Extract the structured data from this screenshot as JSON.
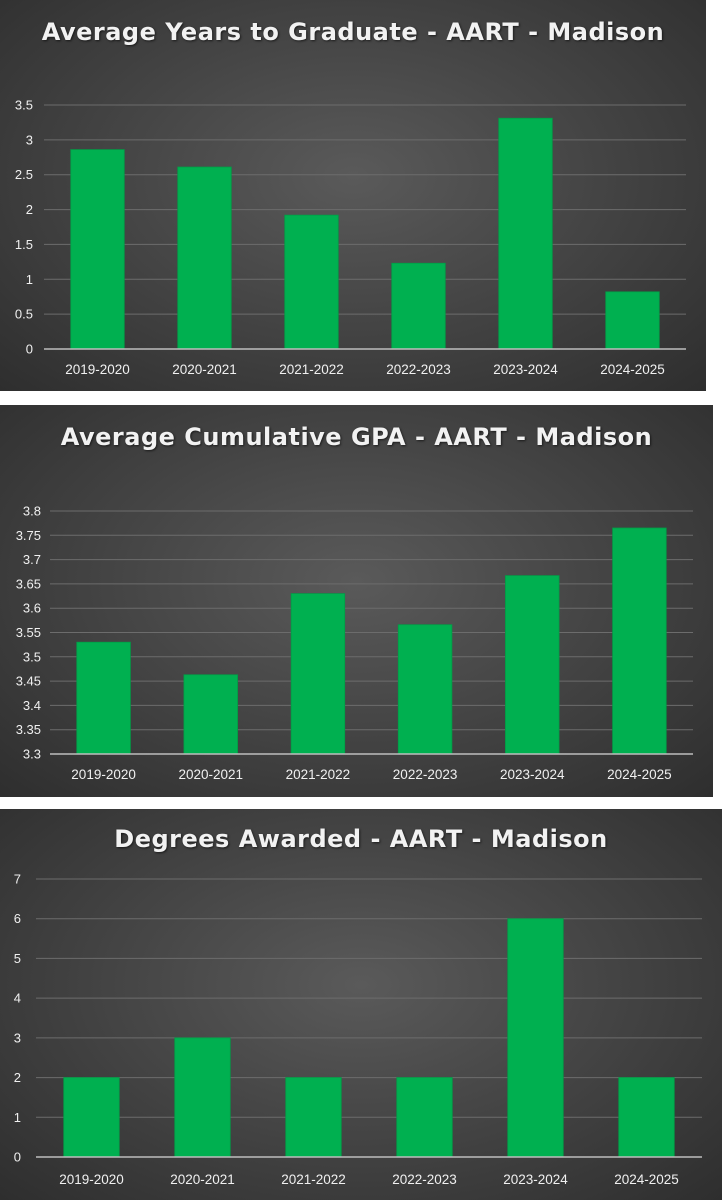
{
  "chart_data": [
    {
      "type": "bar",
      "title": "Average Years to Graduate - AART - Madison",
      "categories": [
        "2019-2020",
        "2020-2021",
        "2021-2022",
        "2022-2023",
        "2023-2024",
        "2024-2025"
      ],
      "values": [
        2.86,
        2.61,
        1.92,
        1.23,
        3.31,
        0.82
      ],
      "ylim": [
        0,
        3.5
      ],
      "yticks": [
        "0",
        "0.5",
        "1",
        "1.5",
        "2",
        "2.5",
        "3",
        "3.5"
      ],
      "grid": true,
      "bar_color": "#00B050"
    },
    {
      "type": "bar",
      "title": "Average Cumulative GPA - AART - Madison",
      "categories": [
        "2019-2020",
        "2020-2021",
        "2021-2022",
        "2022-2023",
        "2023-2024",
        "2024-2025"
      ],
      "values": [
        3.53,
        3.463,
        3.63,
        3.566,
        3.667,
        3.765
      ],
      "ylim": [
        3.3,
        3.8
      ],
      "yticks": [
        "3.3",
        "3.35",
        "3.4",
        "3.45",
        "3.5",
        "3.55",
        "3.6",
        "3.65",
        "3.7",
        "3.75",
        "3.8"
      ],
      "grid": true,
      "bar_color": "#00B050"
    },
    {
      "type": "bar",
      "title": "Degrees Awarded - AART - Madison",
      "categories": [
        "2019-2020",
        "2020-2021",
        "2021-2022",
        "2022-2023",
        "2023-2024",
        "2024-2025"
      ],
      "values": [
        2,
        3,
        2,
        2,
        6,
        2
      ],
      "ylim": [
        0,
        7
      ],
      "yticks": [
        "0",
        "1",
        "2",
        "3",
        "4",
        "5",
        "6",
        "7"
      ],
      "grid": true,
      "bar_color": "#00B050"
    }
  ]
}
